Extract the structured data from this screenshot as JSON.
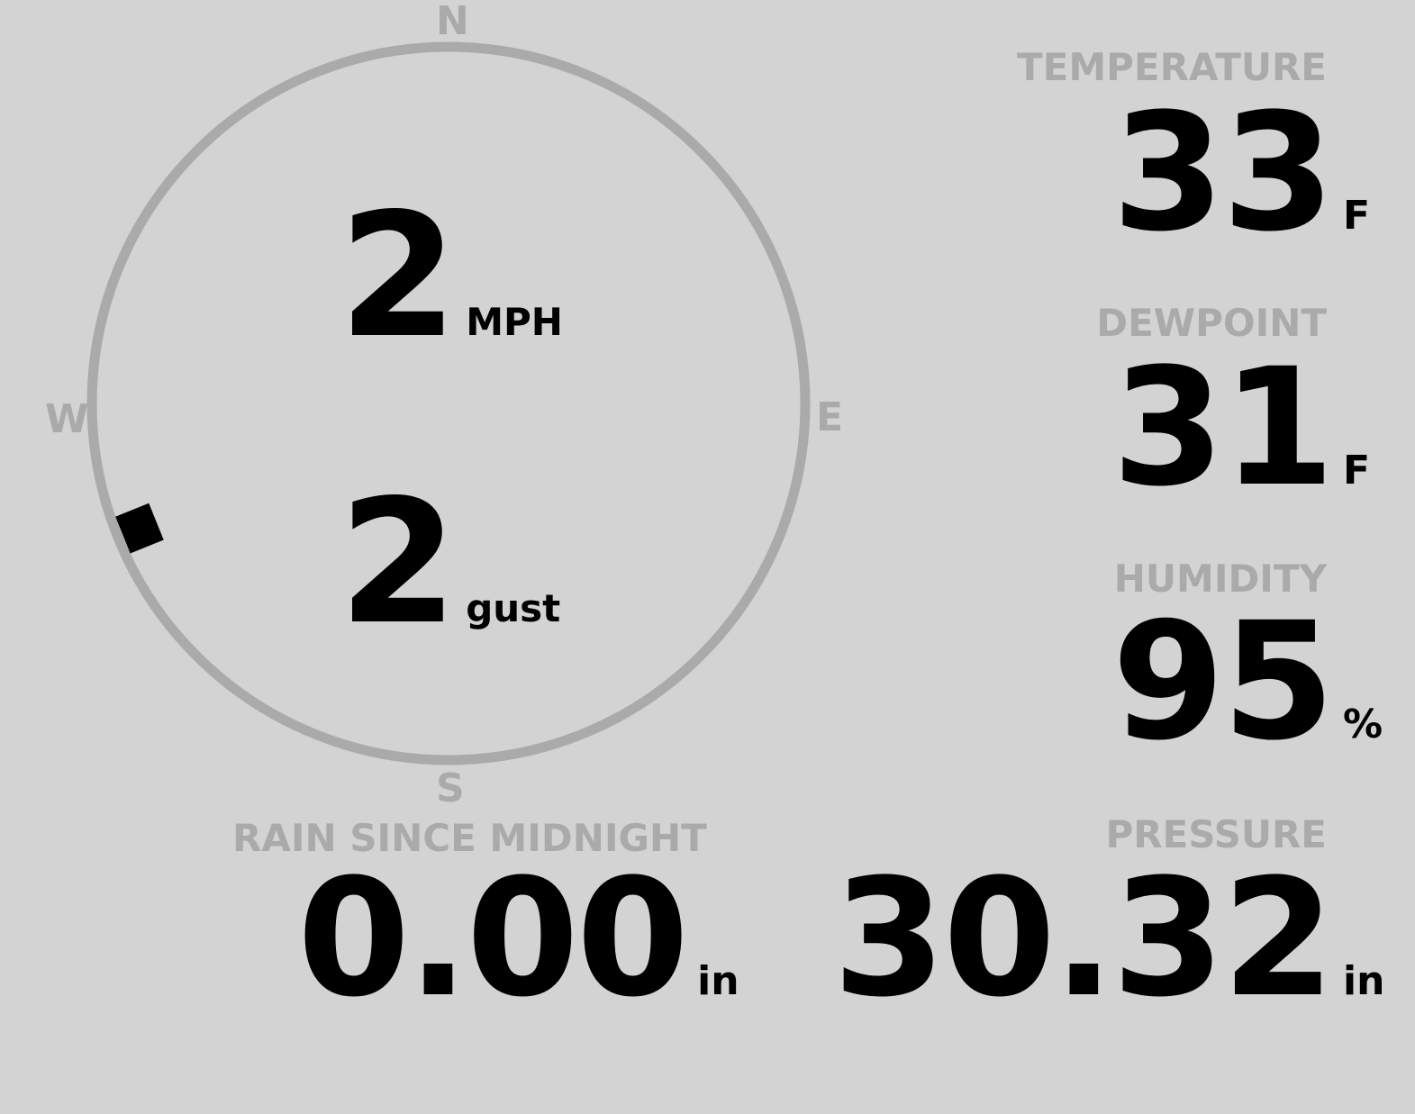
{
  "wind": {
    "speed": "2",
    "speed_unit": "MPH",
    "gust": "2",
    "gust_unit": "gust",
    "direction_degrees": 248,
    "compass": {
      "n": "N",
      "e": "E",
      "s": "S",
      "w": "W"
    }
  },
  "rain": {
    "label": "RAIN SINCE MIDNIGHT",
    "value": "0.00",
    "unit": "in"
  },
  "temperature": {
    "label": "TEMPERATURE",
    "value": "33",
    "unit": "F"
  },
  "dewpoint": {
    "label": "DEWPOINT",
    "value": "31",
    "unit": "F"
  },
  "humidity": {
    "label": "HUMIDITY",
    "value": "95",
    "unit": "%"
  },
  "pressure": {
    "label": "PRESSURE",
    "value": "30.32",
    "unit": "in"
  },
  "colors": {
    "background": "#d3d3d3",
    "label": "#aaaaaa",
    "dial": "#aaaaaa",
    "value": "#000000"
  }
}
